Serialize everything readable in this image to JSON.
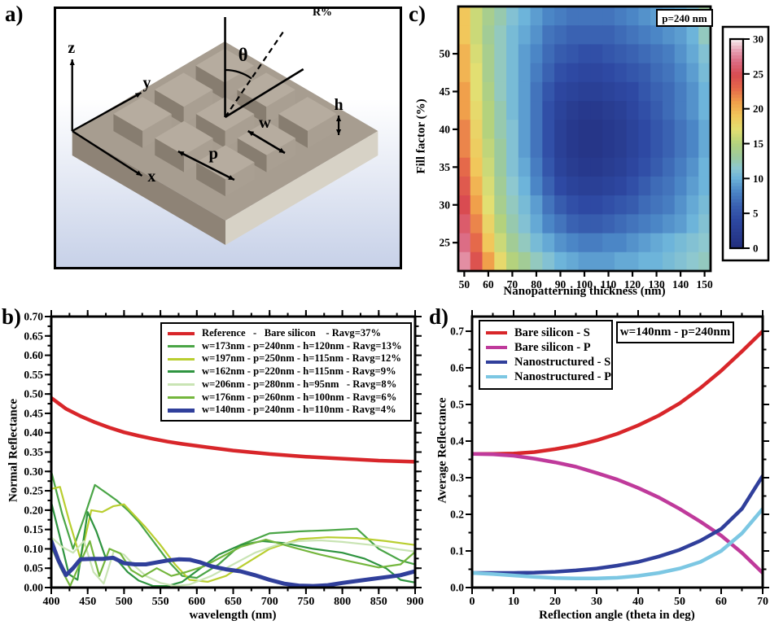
{
  "figure": {
    "panel_letters": {
      "a": "a)",
      "b": "b)",
      "c": "c)",
      "d": "d)"
    },
    "background": "#ffffff"
  },
  "panel_a": {
    "description": "3D schematic of nanopatterned silicon: 3x3 grid of square pillars on a slab",
    "labels": {
      "z": "z",
      "y": "y",
      "x": "x",
      "theta": "θ",
      "p": "p",
      "w": "w",
      "h": "h"
    },
    "colors": {
      "bg_top": "#ffffff",
      "bg_bottom": "#c7d1e8",
      "slab_top": "#a79d90",
      "slab_left": "#8e8376",
      "slab_right": "#d7d2c6",
      "cube_top": "#b6ac9f",
      "cube_left": "#877d70",
      "cube_right": "#a99f92"
    }
  },
  "chart_data": [
    {
      "type": "heatmap",
      "panel": "c",
      "annotation": "p=240 nm",
      "xlabel": "Nanopatterning thickness (nm)",
      "ylabel": "Fill factor (%)",
      "xticks": [
        50,
        60,
        70,
        80,
        90,
        100,
        110,
        120,
        130,
        140,
        150
      ],
      "yticks": [
        25,
        30,
        35,
        40,
        45,
        50
      ],
      "x_start": 50,
      "x_step": 5,
      "y_top": 55,
      "y_step": -2.5,
      "xlim": [
        47.5,
        152.5
      ],
      "ylim": [
        21.25,
        56.25
      ],
      "colorbar": {
        "title": "R%",
        "ticks": [
          0,
          5,
          10,
          15,
          20,
          25,
          30
        ],
        "min": 0,
        "max": 30
      },
      "colormap_stops": [
        [
          0,
          "#23307f"
        ],
        [
          4,
          "#2e49a3"
        ],
        [
          6,
          "#3a62b2"
        ],
        [
          8,
          "#4b86c6"
        ],
        [
          10,
          "#6db4da"
        ],
        [
          11.5,
          "#8ec8cf"
        ],
        [
          13,
          "#9cca9e"
        ],
        [
          15,
          "#b4d27d"
        ],
        [
          17,
          "#e2df72"
        ],
        [
          19,
          "#f1c75b"
        ],
        [
          21,
          "#f0a04b"
        ],
        [
          23,
          "#e5694a"
        ],
        [
          25,
          "#d94b51"
        ],
        [
          27,
          "#dc6d85"
        ],
        [
          28.5,
          "#e79fb2"
        ],
        [
          30,
          "#f7e6ea"
        ]
      ],
      "values": [
        [
          19,
          16,
          14,
          12.5,
          11,
          10,
          9,
          8,
          7.5,
          7,
          7,
          7,
          7,
          7.5,
          8,
          8.5,
          9,
          9.5,
          10,
          11,
          13
        ],
        [
          19,
          16,
          13.5,
          12,
          10.5,
          9.5,
          8.5,
          7,
          6.5,
          6,
          6,
          6,
          6,
          6.5,
          7,
          7.5,
          8,
          8.5,
          9,
          10,
          12
        ],
        [
          20,
          16.5,
          14,
          12,
          10.5,
          9,
          8,
          6.5,
          5.5,
          5,
          4.5,
          4.5,
          5,
          5.5,
          6,
          6.5,
          7,
          7.5,
          8.5,
          9.5,
          11
        ],
        [
          20,
          17,
          14,
          12,
          10.5,
          9,
          7.5,
          6,
          4.5,
          4,
          3.5,
          3.5,
          4,
          4.5,
          5,
          5.5,
          6.5,
          7,
          8,
          9,
          10.5
        ],
        [
          21,
          17,
          14.5,
          12,
          10.5,
          9,
          7,
          5,
          3.5,
          3,
          2.5,
          2.5,
          3,
          3.5,
          4,
          5,
          6,
          6.5,
          7.5,
          8.5,
          10
        ],
        [
          21,
          17.5,
          15,
          12.5,
          10.5,
          9,
          7,
          4.5,
          3,
          2,
          1.5,
          1.5,
          2,
          2.5,
          3.5,
          4.5,
          5.5,
          6.5,
          7.5,
          8.5,
          10
        ],
        [
          22,
          18,
          15,
          12.5,
          11,
          9,
          7,
          4.5,
          2.5,
          1.5,
          1,
          1,
          1.5,
          2,
          3,
          4,
          5,
          6,
          7,
          8,
          9.5
        ],
        [
          22,
          18.5,
          15.5,
          13,
          11,
          9,
          7,
          4.5,
          2.5,
          1.5,
          1,
          1,
          1.5,
          2,
          3,
          4,
          5,
          6,
          7,
          8,
          9.5
        ],
        [
          23,
          19,
          16,
          13,
          11,
          9.5,
          7.5,
          5,
          3,
          2,
          1.5,
          1.5,
          2,
          2.5,
          3.5,
          4.5,
          5.5,
          6.5,
          7.5,
          8.5,
          10
        ],
        [
          24,
          20,
          16.5,
          13.5,
          11.5,
          10,
          8,
          6,
          4,
          3,
          2.5,
          2.5,
          3,
          3.5,
          4.5,
          5.5,
          6.5,
          7,
          8,
          9,
          10
        ],
        [
          25,
          21,
          17,
          14,
          12,
          10.5,
          9,
          7,
          5.5,
          4.5,
          4,
          4,
          4.5,
          5,
          5.5,
          6.5,
          7,
          7.5,
          8.5,
          9.5,
          10.5
        ],
        [
          26,
          22,
          18,
          15,
          12.5,
          11,
          9.5,
          8,
          7,
          6,
          5.5,
          5.5,
          6,
          6.5,
          7,
          7.5,
          8,
          8.5,
          9,
          10,
          11
        ],
        [
          27,
          23,
          19,
          16,
          13.5,
          12,
          10.5,
          9.5,
          8.5,
          8,
          7.5,
          7.5,
          8,
          8,
          8.5,
          9,
          9.5,
          10,
          10.5,
          11,
          11.5
        ],
        [
          28,
          24.5,
          21,
          17.5,
          15,
          13.5,
          12,
          11,
          10,
          9.5,
          9,
          9,
          9,
          9.5,
          9.5,
          10,
          10,
          10.5,
          11,
          11.5,
          12
        ]
      ]
    },
    {
      "type": "line",
      "panel": "b",
      "xlabel": "wavelength (nm)",
      "ylabel": "Normal Reflectance",
      "xlim": [
        400,
        900
      ],
      "ylim": [
        0,
        0.7
      ],
      "xticks": {
        "values": [
          400,
          450,
          500,
          550,
          600,
          650,
          700,
          750,
          800,
          850,
          900
        ],
        "labels": [
          "400",
          "450",
          "500",
          "550",
          "600",
          "650",
          "700",
          "750",
          "800",
          "850",
          "900"
        ]
      },
      "yticks": {
        "values": [
          0,
          0.05,
          0.1,
          0.15,
          0.2,
          0.25,
          0.3,
          0.35,
          0.4,
          0.45,
          0.5,
          0.55,
          0.6,
          0.65,
          0.7
        ],
        "labels": [
          "0.00",
          "0.05",
          "0.10",
          "0.15",
          "0.20",
          "0.25",
          "0.30",
          "0.35",
          "0.40",
          "0.45",
          "0.50",
          "0.55",
          "0.60",
          "0.65",
          "0.70"
        ]
      },
      "x_minor_step": 25,
      "y_minor_step": 0.025,
      "legend_position": "top-right",
      "series": [
        {
          "name": "reference",
          "label": "Reference   -   Bare silicon    - Ravg=37%",
          "color": "#d8262a",
          "width": 4.5,
          "x": [
            400,
            420,
            440,
            460,
            480,
            500,
            520,
            540,
            560,
            580,
            600,
            650,
            700,
            750,
            800,
            850,
            900
          ],
          "y": [
            0.49,
            0.462,
            0.443,
            0.427,
            0.413,
            0.401,
            0.392,
            0.384,
            0.377,
            0.371,
            0.366,
            0.354,
            0.345,
            0.338,
            0.333,
            0.328,
            0.325
          ]
        },
        {
          "name": "w173",
          "label": "w=173nm - p=240nm - h=120nm - Ravg=13%",
          "color": "#4aa546",
          "width": 2.2,
          "x": [
            400,
            415,
            430,
            445,
            460,
            475,
            490,
            505,
            520,
            540,
            560,
            580,
            600,
            630,
            660,
            700,
            740,
            780,
            820,
            850,
            880,
            900
          ],
          "y": [
            0.3,
            0.19,
            0.1,
            0.18,
            0.265,
            0.245,
            0.225,
            0.2,
            0.17,
            0.12,
            0.07,
            0.03,
            0.025,
            0.06,
            0.11,
            0.14,
            0.145,
            0.148,
            0.152,
            0.1,
            0.07,
            0.06
          ]
        },
        {
          "name": "w197",
          "label": "w=197nm - p=250nm - h=115nm - Ravg=12%",
          "color": "#b9ce30",
          "width": 2.2,
          "x": [
            400,
            412,
            425,
            440,
            455,
            470,
            485,
            500,
            515,
            530,
            550,
            570,
            590,
            615,
            640,
            670,
            700,
            740,
            780,
            820,
            860,
            900
          ],
          "y": [
            0.255,
            0.26,
            0.17,
            0.075,
            0.2,
            0.195,
            0.21,
            0.215,
            0.185,
            0.155,
            0.11,
            0.06,
            0.02,
            0.015,
            0.03,
            0.065,
            0.1,
            0.125,
            0.13,
            0.128,
            0.12,
            0.11
          ]
        },
        {
          "name": "w162",
          "label": "w=162nm - p=220nm - h=115nm - Ravg=9%",
          "color": "#2f9440",
          "width": 2.2,
          "x": [
            400,
            412,
            424,
            436,
            450,
            462,
            475,
            490,
            505,
            520,
            540,
            560,
            580,
            605,
            630,
            660,
            690,
            720,
            760,
            800,
            830,
            860,
            880,
            900
          ],
          "y": [
            0.22,
            0.13,
            0.035,
            0.02,
            0.195,
            0.145,
            0.075,
            0.072,
            0.04,
            0.018,
            0.004,
            0.004,
            0.015,
            0.05,
            0.085,
            0.11,
            0.12,
            0.115,
            0.1,
            0.09,
            0.075,
            0.05,
            0.02,
            0.013
          ]
        },
        {
          "name": "w206",
          "label": "w=206nm - p=280nm - h=95nm   - Ravg=8%",
          "color": "#c9e4b4",
          "width": 2.2,
          "x": [
            400,
            415,
            430,
            445,
            458,
            472,
            486,
            500,
            515,
            530,
            550,
            570,
            590,
            620,
            650,
            680,
            710,
            740,
            770,
            800,
            840,
            880,
            900
          ],
          "y": [
            0.13,
            0.105,
            0.09,
            0.12,
            0.04,
            0.01,
            0.095,
            0.085,
            0.055,
            0.03,
            0.012,
            0.004,
            0.008,
            0.03,
            0.06,
            0.09,
            0.11,
            0.12,
            0.122,
            0.118,
            0.11,
            0.098,
            0.093
          ]
        },
        {
          "name": "w176",
          "label": "w=176nm - p=260nm - h=100nm - Ravg=6%",
          "color": "#74b63d",
          "width": 2.2,
          "x": [
            400,
            413,
            426,
            440,
            453,
            466,
            480,
            495,
            510,
            525,
            545,
            565,
            585,
            610,
            635,
            660,
            695,
            730,
            770,
            810,
            850,
            880,
            900
          ],
          "y": [
            0.105,
            0.05,
            0.004,
            0.065,
            0.12,
            0.03,
            0.1,
            0.088,
            0.045,
            0.028,
            0.05,
            0.03,
            0.04,
            0.055,
            0.08,
            0.105,
            0.124,
            0.105,
            0.085,
            0.068,
            0.052,
            0.06,
            0.092
          ]
        },
        {
          "name": "w140",
          "label": "w=140nm - p=240nm - h=110nm - Ravg=4%",
          "color": "#303f9b",
          "width": 5,
          "x": [
            400,
            410,
            420,
            430,
            440,
            455,
            470,
            485,
            500,
            515,
            530,
            545,
            560,
            575,
            590,
            605,
            620,
            640,
            660,
            680,
            700,
            720,
            740,
            760,
            780,
            800,
            820,
            840,
            860,
            880,
            900
          ],
          "y": [
            0.12,
            0.07,
            0.032,
            0.05,
            0.073,
            0.074,
            0.074,
            0.077,
            0.063,
            0.06,
            0.06,
            0.065,
            0.07,
            0.073,
            0.072,
            0.065,
            0.055,
            0.047,
            0.042,
            0.032,
            0.02,
            0.01,
            0.005,
            0.004,
            0.006,
            0.012,
            0.017,
            0.022,
            0.027,
            0.032,
            0.042
          ]
        }
      ]
    },
    {
      "type": "line",
      "panel": "d",
      "annotation": "w=140nm - p=240nm",
      "xlabel": "Reflection angle (theta in deg)",
      "ylabel": "Average Reflectance",
      "xlim": [
        0,
        70
      ],
      "ylim": [
        0,
        0.74
      ],
      "xticks": {
        "values": [
          0,
          10,
          20,
          30,
          40,
          50,
          60,
          70
        ],
        "labels": [
          "0",
          "10",
          "20",
          "30",
          "40",
          "50",
          "60",
          "70"
        ]
      },
      "yticks": {
        "values": [
          0,
          0.1,
          0.2,
          0.3,
          0.4,
          0.5,
          0.6,
          0.7
        ],
        "labels": [
          "0.0",
          "0.1",
          "0.2",
          "0.3",
          "0.4",
          "0.5",
          "0.6",
          "0.7"
        ]
      },
      "x_minor_step": 5,
      "y_minor_step": 0.05,
      "legend_position": "top-left",
      "series": [
        {
          "name": "bare-s",
          "label": "Bare silicon - S",
          "color": "#d8262a",
          "width": 4.5,
          "x": [
            0,
            5,
            10,
            15,
            20,
            25,
            30,
            35,
            40,
            45,
            50,
            55,
            60,
            65,
            70
          ],
          "y": [
            0.365,
            0.365,
            0.366,
            0.37,
            0.378,
            0.388,
            0.402,
            0.42,
            0.443,
            0.47,
            0.503,
            0.545,
            0.592,
            0.645,
            0.7
          ]
        },
        {
          "name": "bare-p",
          "label": "Bare silicon - P",
          "color": "#bf3a9b",
          "width": 4.5,
          "x": [
            0,
            5,
            10,
            15,
            20,
            25,
            30,
            35,
            40,
            45,
            50,
            55,
            60,
            65,
            70
          ],
          "y": [
            0.365,
            0.364,
            0.36,
            0.352,
            0.342,
            0.33,
            0.313,
            0.295,
            0.272,
            0.246,
            0.215,
            0.18,
            0.142,
            0.095,
            0.04
          ]
        },
        {
          "name": "nano-s",
          "label": "Nanostructured - S",
          "color": "#303f9b",
          "width": 4.5,
          "x": [
            0,
            5,
            10,
            15,
            20,
            25,
            30,
            35,
            40,
            45,
            50,
            55,
            60,
            65,
            70
          ],
          "y": [
            0.04,
            0.04,
            0.04,
            0.041,
            0.043,
            0.047,
            0.052,
            0.06,
            0.07,
            0.085,
            0.103,
            0.128,
            0.16,
            0.215,
            0.305
          ]
        },
        {
          "name": "nano-p",
          "label": "Nanostructured - P",
          "color": "#7cc7e3",
          "width": 4.5,
          "x": [
            0,
            5,
            10,
            15,
            20,
            25,
            30,
            35,
            40,
            45,
            50,
            55,
            60,
            65,
            70
          ],
          "y": [
            0.04,
            0.037,
            0.033,
            0.029,
            0.026,
            0.025,
            0.025,
            0.027,
            0.032,
            0.04,
            0.052,
            0.07,
            0.1,
            0.148,
            0.215
          ]
        }
      ]
    }
  ]
}
